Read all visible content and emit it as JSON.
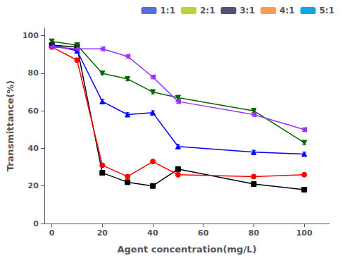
{
  "chart_data": {
    "type": "line",
    "xlabel": "Agent concentration(mg/L)",
    "ylabel": "Transmittance(%)",
    "x": [
      0,
      10,
      20,
      30,
      40,
      50,
      80,
      100
    ],
    "series": [
      {
        "name": "1:1",
        "color": "#000000",
        "marker": "square",
        "line_style": "solid",
        "values": [
          95,
          94,
          27,
          22,
          20,
          29,
          21,
          18
        ],
        "yerr": [
          1.0,
          1.0,
          1.0,
          1.0,
          1.0,
          1.0,
          1.0,
          1.0
        ]
      },
      {
        "name": "2:1",
        "color": "#ff0000",
        "marker": "circle",
        "line_style": "solid",
        "values": [
          94,
          87,
          31,
          25,
          33,
          26,
          25,
          26
        ],
        "yerr": [
          1.0,
          1.0,
          1.0,
          1.0,
          1.0,
          1.0,
          1.0,
          1.0
        ]
      },
      {
        "name": "3:1",
        "color": "#0000ff",
        "marker": "triangle-up",
        "line_style": "solid",
        "values": [
          95,
          92,
          65,
          58,
          59,
          41,
          38,
          37
        ],
        "yerr": [
          1.0,
          1.0,
          1.0,
          1.0,
          1.0,
          1.0,
          1.0,
          1.0
        ]
      },
      {
        "name": "4:1",
        "color": "#006400",
        "marker": "triangle-down",
        "line_style": "solid",
        "values": [
          97,
          95,
          80,
          77,
          70,
          67,
          60,
          43
        ],
        "yerr": [
          1.0,
          0.5,
          0.5,
          1.0,
          1.0,
          1.0,
          1.0,
          1.0
        ]
      },
      {
        "name": "5:1",
        "color": "#9b30ff",
        "marker": "triangle-left",
        "line_style": "solid",
        "values": [
          94,
          93,
          93,
          89,
          78,
          65,
          58,
          50
        ],
        "yerr": [
          1.0,
          1.0,
          1.0,
          1.0,
          1.0,
          1.0,
          1.0,
          1.0
        ]
      }
    ],
    "xlim": [
      -3,
      110
    ],
    "ylim": [
      0,
      104
    ],
    "xticks": [
      0,
      20,
      40,
      60,
      80,
      100
    ],
    "yticks": [
      0,
      20,
      40,
      60,
      80,
      100
    ],
    "legend": "upper right",
    "grid": false
  }
}
